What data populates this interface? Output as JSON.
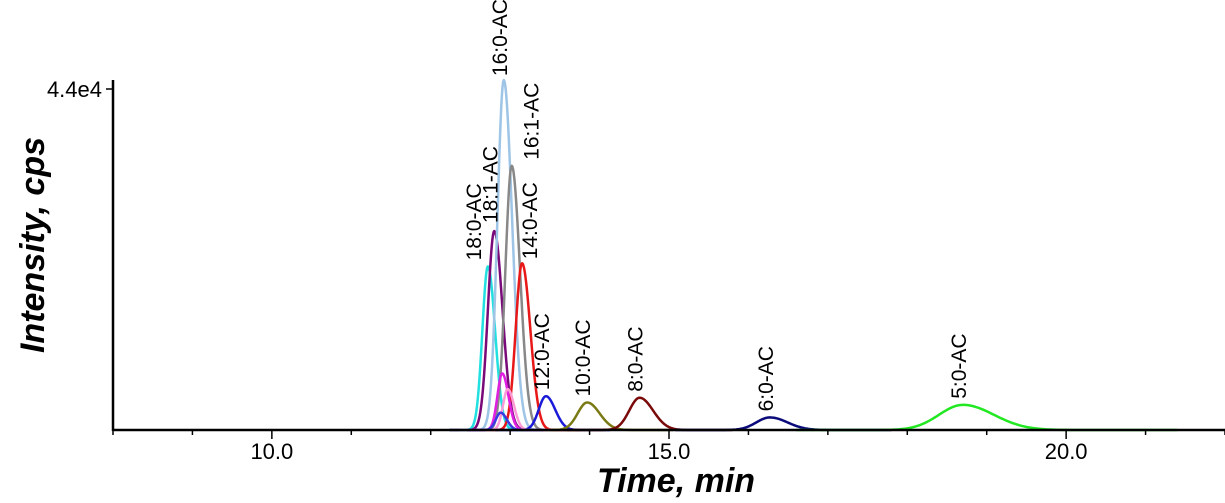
{
  "chart_data": {
    "type": "line",
    "xlabel": "Time, min",
    "ylabel": "Intensity, cps",
    "xlim": [
      8.0,
      22.0
    ],
    "ylim": [
      0,
      44000
    ],
    "x_ticks": [
      10.0,
      15.0,
      20.0
    ],
    "x_tick_labels": [
      "10.0",
      "15.0",
      "20.0"
    ],
    "y_tick_labels": [
      "4.4e4"
    ],
    "y_ticks": [
      44000
    ],
    "grid": false,
    "legend": "none",
    "series": [
      {
        "name": "18:0-AC",
        "color": "#22e0e0",
        "peak_time": 12.72,
        "peak_intensity": 20800,
        "width": 0.07
      },
      {
        "name": "18:1-AC",
        "color": "#7a0a7a",
        "peak_time": 12.8,
        "peak_intensity": 25300,
        "width": 0.08
      },
      {
        "name": "16:0-AC",
        "color": "#9ec4e6",
        "peak_time": 12.92,
        "peak_intensity": 44500,
        "width": 0.08
      },
      {
        "name": "16:1-AC",
        "color": "#888888",
        "peak_time": 13.02,
        "peak_intensity": 33600,
        "width": 0.08
      },
      {
        "name": "14:0-AC",
        "color": "#e81818",
        "peak_time": 13.15,
        "peak_intensity": 21200,
        "width": 0.08
      },
      {
        "name": "12:0-AC",
        "color": "#1a1ad8",
        "peak_time": 13.45,
        "peak_intensity": 4300,
        "width": 0.09
      },
      {
        "name": "10:0-AC",
        "color": "#7a7a14",
        "peak_time": 13.97,
        "peak_intensity": 3500,
        "width": 0.12
      },
      {
        "name": "8:0-AC",
        "color": "#7a0a0a",
        "peak_time": 14.63,
        "peak_intensity": 4100,
        "width": 0.13
      },
      {
        "name": "6:0-AC",
        "color": "#0a0a7a",
        "peak_time": 16.27,
        "peak_intensity": 1600,
        "width": 0.17
      },
      {
        "name": "5:0-AC",
        "color": "#22e822",
        "peak_time": 18.7,
        "peak_intensity": 3200,
        "width": 0.3
      },
      {
        "name": "",
        "color": "#e020e0",
        "peak_time": 12.9,
        "peak_intensity": 7200,
        "width": 0.06
      },
      {
        "name": "",
        "color": "#ff9ad8",
        "peak_time": 12.97,
        "peak_intensity": 5200,
        "width": 0.06
      },
      {
        "name": "",
        "color": "#3a3ae0",
        "peak_time": 12.88,
        "peak_intensity": 2200,
        "width": 0.06
      }
    ],
    "peak_labels": [
      {
        "text": "18:0-AC",
        "series": "18:0-AC"
      },
      {
        "text": "18:1-AC",
        "series": "18:1-AC"
      },
      {
        "text": "16:0-AC",
        "series": "16:0-AC"
      },
      {
        "text": "16:1-AC",
        "series": "16:1-AC"
      },
      {
        "text": "14:0-AC",
        "series": "14:0-AC"
      },
      {
        "text": "12:0-AC",
        "series": "12:0-AC"
      },
      {
        "text": "10:0-AC",
        "series": "10:0-AC"
      },
      {
        "text": "8:0-AC",
        "series": "8:0-AC"
      },
      {
        "text": "6:0-AC",
        "series": "6:0-AC"
      },
      {
        "text": "5:0-AC",
        "series": "5:0-AC"
      }
    ]
  }
}
